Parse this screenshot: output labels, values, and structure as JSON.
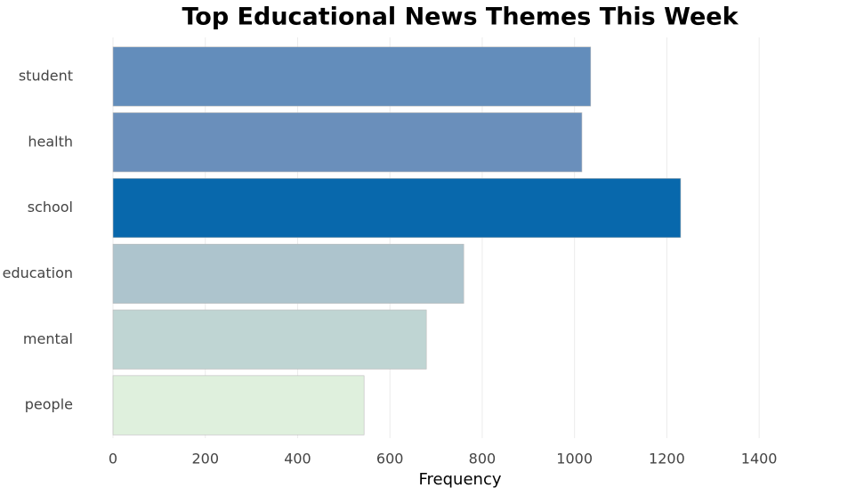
{
  "chart_data": {
    "type": "barh",
    "title": "Top Educational News Themes This Week",
    "x_label": "Frequency",
    "categories": [
      "student",
      "health",
      "school",
      "education",
      "mental",
      "people"
    ],
    "values": [
      1035,
      1016,
      1230,
      760,
      679,
      544
    ],
    "colors": [
      "#638dbb",
      "#6a8fbb",
      "#0868ac",
      "#adc4cd",
      "#bfd5d3",
      "#dff0dd"
    ],
    "xlim": [
      0,
      1500
    ],
    "xticks": [
      0,
      200,
      400,
      600,
      800,
      1000,
      1200,
      1400
    ],
    "grid": true
  }
}
